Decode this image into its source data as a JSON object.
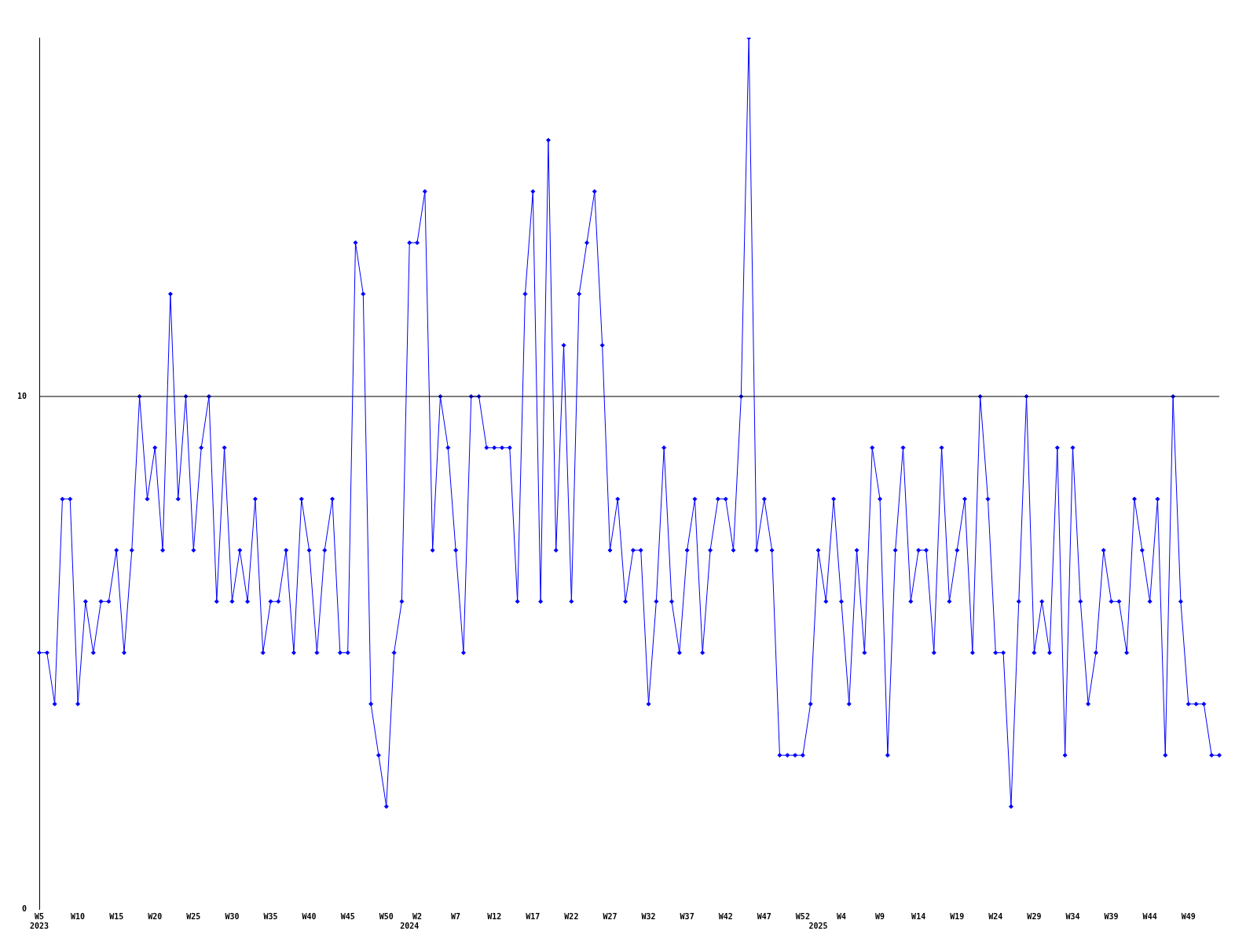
{
  "chart_data": {
    "type": "line",
    "categories": [
      "W5\n2023",
      null,
      null,
      null,
      null,
      "W10",
      null,
      null,
      null,
      null,
      "W15",
      null,
      null,
      null,
      null,
      "W20",
      null,
      null,
      null,
      null,
      "W25",
      null,
      null,
      null,
      null,
      "W30",
      null,
      null,
      null,
      null,
      "W35",
      null,
      null,
      null,
      null,
      "W40",
      null,
      null,
      null,
      null,
      "W45",
      null,
      null,
      null,
      null,
      "W50",
      null,
      null,
      "\n2024",
      "W2",
      null,
      null,
      null,
      null,
      "W7",
      null,
      null,
      null,
      null,
      "W12",
      null,
      null,
      null,
      null,
      "W17",
      null,
      null,
      null,
      null,
      "W22",
      null,
      null,
      null,
      null,
      "W27",
      null,
      null,
      null,
      null,
      "W32",
      null,
      null,
      null,
      null,
      "W37",
      null,
      null,
      null,
      null,
      "W42",
      null,
      null,
      null,
      null,
      "W47",
      null,
      null,
      null,
      null,
      "W52",
      null,
      "\n2025",
      null,
      null,
      "W4",
      null,
      null,
      null,
      null,
      "W9",
      null,
      null,
      null,
      null,
      "W14",
      null,
      null,
      null,
      null,
      "W19",
      null,
      null,
      null,
      null,
      "W24",
      null,
      null,
      null,
      null,
      "W29",
      null,
      null,
      null,
      null,
      "W34",
      null,
      null,
      null,
      null,
      "W39",
      null,
      null,
      null,
      null,
      "W44",
      null,
      null,
      null,
      null,
      "W49",
      null,
      null,
      null,
      null
    ],
    "series": [
      {
        "color": "#0000ff",
        "values": [
          5,
          5,
          4,
          8,
          8,
          4,
          6,
          5,
          6,
          6,
          7,
          5,
          7,
          10,
          8,
          9,
          7,
          12,
          8,
          10,
          7,
          9,
          10,
          6,
          9,
          6,
          7,
          6,
          8,
          5,
          6,
          6,
          7,
          5,
          8,
          7,
          5,
          7,
          8,
          5,
          5,
          13,
          12,
          4,
          3,
          2,
          5,
          6,
          13,
          13,
          14,
          7,
          10,
          9,
          7,
          5,
          10,
          10,
          9,
          9,
          9,
          9,
          6,
          12,
          14,
          6,
          15,
          7,
          11,
          6,
          12,
          13,
          14,
          11,
          7,
          8,
          6,
          7,
          7,
          4,
          6,
          9,
          6,
          5,
          7,
          8,
          5,
          7,
          8,
          8,
          7,
          10,
          17,
          7,
          8,
          7,
          3,
          3,
          3,
          3,
          4,
          7,
          6,
          8,
          6,
          4,
          7,
          5,
          9,
          8,
          3,
          7,
          9,
          6,
          7,
          7,
          5,
          9,
          6,
          7,
          8,
          5,
          10,
          8,
          5,
          5,
          2,
          6,
          10,
          5,
          6,
          5,
          9,
          3,
          9,
          6,
          4,
          5,
          7,
          6,
          6,
          5,
          8,
          7,
          6,
          8,
          3,
          10,
          6,
          4,
          4,
          4,
          3,
          3
        ]
      }
    ],
    "ylim": [
      0,
      17
    ],
    "yticks": [
      0,
      10
    ],
    "ref_lines": [
      {
        "axis": "y",
        "value": 10,
        "color": "#000000"
      }
    ],
    "marker": "diamond",
    "line_style": "solid",
    "grid": false,
    "legend": false
  }
}
